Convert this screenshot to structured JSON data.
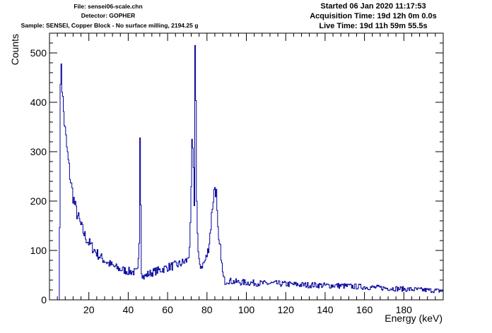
{
  "header": {
    "file": "File: sensei06-scale.chn",
    "detector": "Detector: GOPHER",
    "sample": "Sample: SENSEI, Copper Block - No surface milling, 2194.25 g",
    "started": "Started 06 Jan 2020 11:17:53",
    "acquisition": "Acquisition Time: 19d 12h 0m 0.0s",
    "live": "Live Time: 19d 11h 59m 55.5s"
  },
  "chart_data": {
    "type": "line",
    "xlabel": "Energy (keV)",
    "ylabel": "Counts",
    "xlim": [
      0,
      200
    ],
    "ylim": [
      0,
      540
    ],
    "x_ticks": [
      20,
      40,
      60,
      80,
      100,
      120,
      140,
      160,
      180
    ],
    "y_ticks": [
      0,
      100,
      200,
      300,
      400,
      500
    ],
    "line_color": "#000099",
    "series": [
      {
        "x": [
          5.0,
          5.5,
          6.0,
          6.5,
          7.0,
          8.0,
          9.0,
          10.0,
          11.0,
          12.0,
          13.0,
          14.0,
          15.0,
          16.0,
          17.0,
          18.0,
          19.0,
          20.0,
          22.0,
          24.0,
          26.0,
          28.0,
          30.0,
          32.0,
          34.0,
          36.0,
          38.0,
          40.0,
          42.0,
          44.0,
          45.0,
          45.6,
          46.0,
          46.4,
          46.8,
          47.4,
          48.0,
          50.0,
          52.0,
          54.0,
          56.0,
          58.0,
          60.0,
          62.0,
          64.0,
          66.0,
          68.0,
          70.0,
          71.0,
          71.8,
          72.4,
          73.0,
          73.6,
          74.0,
          74.4,
          74.8,
          75.4,
          76.0,
          77.0,
          78.0,
          79.0,
          80.0,
          81.0,
          82.0,
          83.0,
          84.0,
          84.8,
          85.4,
          86.0,
          86.6,
          87.2,
          87.8,
          88.4,
          89.0,
          89.6,
          90.0,
          92.0,
          95.0,
          100.0,
          105.0,
          110.0,
          115.0,
          120.0,
          125.0,
          130.0,
          135.0,
          140.0,
          145.0,
          150.0,
          155.0,
          160.0,
          165.0,
          170.0,
          175.0,
          180.0,
          185.0,
          190.0,
          195.0,
          200.0
        ],
        "y": [
          0,
          400,
          488,
          420,
          390,
          340,
          300,
          265,
          235,
          210,
          190,
          175,
          162,
          150,
          140,
          130,
          122,
          116,
          105,
          95,
          86,
          80,
          74,
          69,
          65,
          62,
          60,
          58,
          57,
          56,
          58,
          120,
          348,
          200,
          60,
          48,
          46,
          52,
          55,
          58,
          60,
          63,
          66,
          68,
          70,
          72,
          76,
          80,
          95,
          160,
          320,
          280,
          200,
          508,
          420,
          200,
          100,
          75,
          68,
          72,
          78,
          90,
          110,
          150,
          200,
          230,
          215,
          150,
          112,
          108,
          90,
          60,
          45,
          38,
          36,
          40,
          38,
          36,
          35,
          34,
          33,
          33,
          32,
          31,
          30,
          30,
          29,
          29,
          28,
          27,
          26,
          25,
          24,
          23,
          22,
          21,
          20,
          19,
          18
        ]
      }
    ]
  }
}
